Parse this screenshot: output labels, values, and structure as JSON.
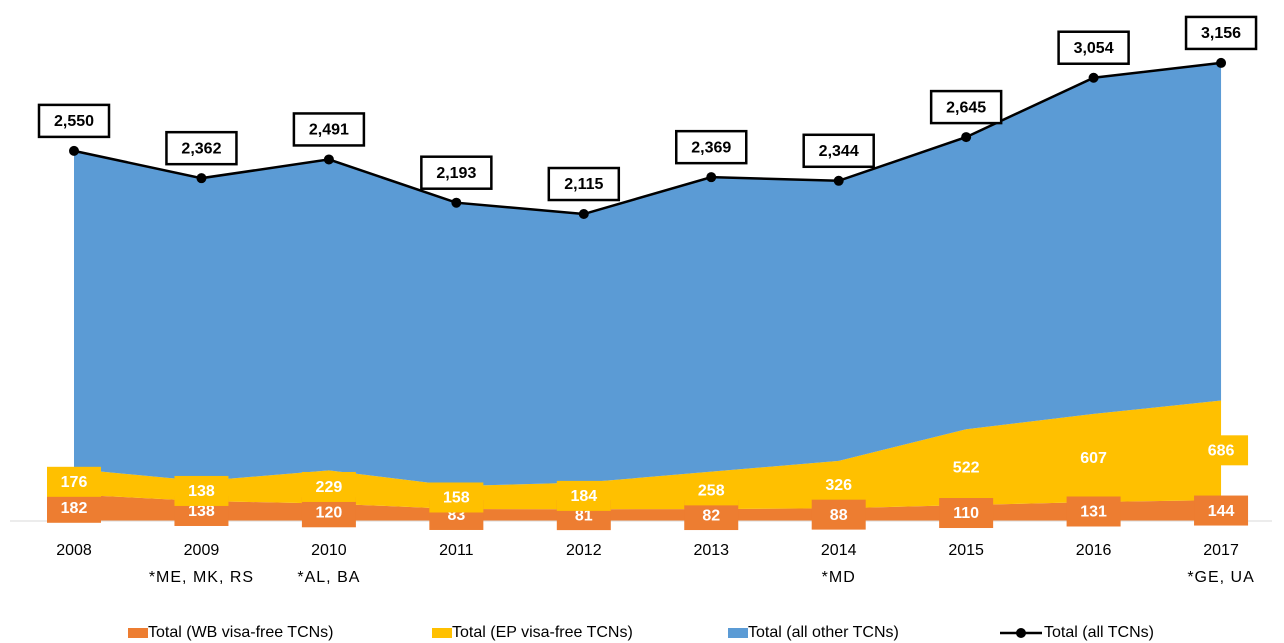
{
  "chart_data": {
    "type": "area",
    "stacked": true,
    "categories": [
      "2008",
      "2009",
      "2010",
      "2011",
      "2012",
      "2013",
      "2014",
      "2015",
      "2016",
      "2017"
    ],
    "category_notes": [
      null,
      "*ME, MK, RS",
      "*AL, BA",
      null,
      null,
      null,
      "*MD",
      null,
      null,
      "*GE, UA"
    ],
    "ylim": [
      0,
      3500
    ],
    "series": [
      {
        "name": "Total (WB visa-free TCNs)",
        "color": "#ed7d31",
        "values": [
          182,
          138,
          120,
          83,
          81,
          82,
          88,
          110,
          131,
          144
        ]
      },
      {
        "name": "Total (EP visa-free TCNs)",
        "color": "#ffc000",
        "values": [
          176,
          138,
          229,
          158,
          184,
          258,
          326,
          522,
          607,
          686
        ]
      },
      {
        "name": "Total (all other TCNs)",
        "color": "#5b9bd5",
        "values": [
          2192,
          2086,
          2142,
          1952,
          1850,
          2029,
          1930,
          2013,
          2316,
          2326
        ]
      },
      {
        "name": "Total (all TCNs)",
        "color": "#000000",
        "type": "line",
        "values": [
          2550,
          2362,
          2491,
          2193,
          2115,
          2369,
          2344,
          2645,
          3054,
          3156
        ],
        "value_labels": [
          "2,550",
          "2,362",
          "2,491",
          "2,193",
          "2,115",
          "2,369",
          "2,344",
          "2,645",
          "3,054",
          "3,156"
        ]
      }
    ]
  }
}
